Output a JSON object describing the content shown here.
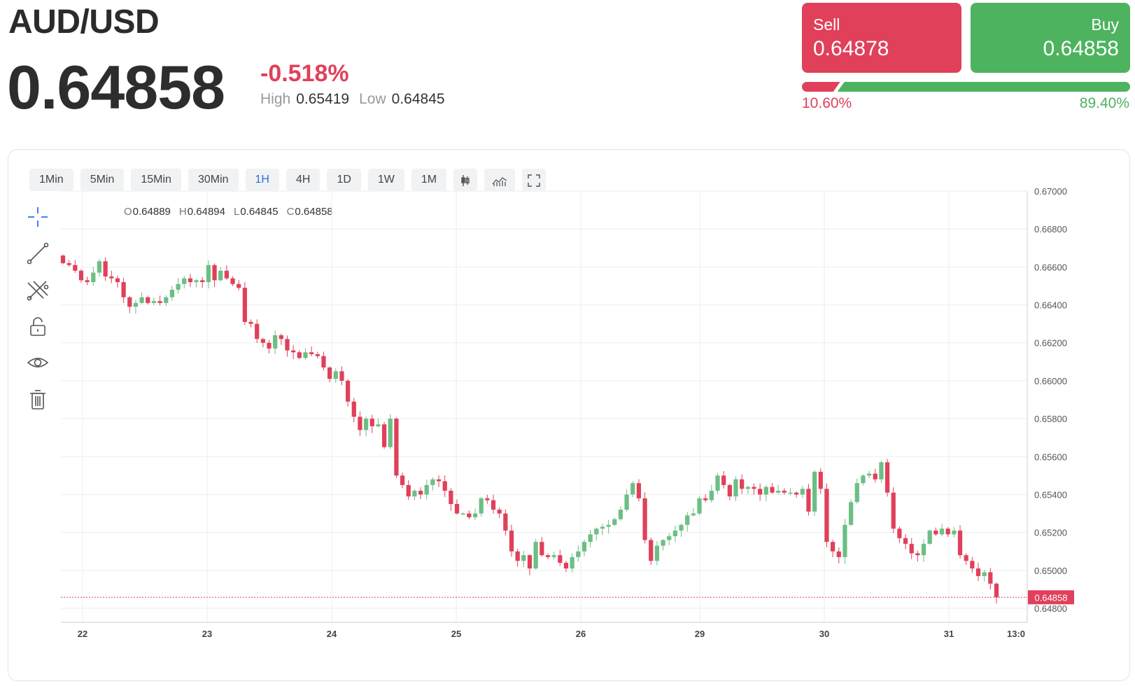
{
  "header": {
    "symbol": "AUD/USD",
    "price": "0.64858",
    "change": "-0.518%",
    "high_label": "High",
    "high": "0.65419",
    "low_label": "Low",
    "low": "0.64845"
  },
  "trade": {
    "sell_label": "Sell",
    "sell_price": "0.64878",
    "buy_label": "Buy",
    "buy_price": "0.64858",
    "sell_pct": "10.60%",
    "buy_pct": "89.40%",
    "sell_fraction": 0.106,
    "colors": {
      "sell": "#e0405a",
      "buy": "#4db35e"
    }
  },
  "toolbar": {
    "timeframes": [
      "1Min",
      "5Min",
      "15Min",
      "30Min",
      "1H",
      "4H",
      "1D",
      "1W",
      "1M"
    ],
    "active": "1H",
    "icons": [
      "candlestick-icon",
      "indicators-icon",
      "fullscreen-icon"
    ]
  },
  "drawing_tools": [
    "crosshair-icon",
    "trend-line-icon",
    "fib-tool-icon",
    "lock-icon",
    "eye-icon",
    "trash-icon"
  ],
  "ohlc": {
    "o_label": "O",
    "o": "0.64889",
    "h_label": "H",
    "h": "0.64894",
    "l_label": "L",
    "l": "0.64845",
    "c_label": "C",
    "c": "0.64858"
  },
  "chart_data": {
    "type": "candlestick",
    "x_ticks": [
      "22",
      "23",
      "24",
      "25",
      "26",
      "29",
      "30",
      "31",
      "13:0"
    ],
    "y_ticks": [
      "0.67000",
      "0.66800",
      "0.66600",
      "0.66400",
      "0.66200",
      "0.66000",
      "0.65800",
      "0.65600",
      "0.65400",
      "0.65200",
      "0.65000",
      "0.64800"
    ],
    "ylim": [
      0.64775,
      0.67
    ],
    "last_price": "0.64858",
    "grid": true,
    "close_path": [
      0.6662,
      0.6661,
      0.6658,
      0.6653,
      0.6652,
      0.6657,
      0.6663,
      0.6655,
      0.6654,
      0.6652,
      0.6644,
      0.6639,
      0.6641,
      0.6644,
      0.6641,
      0.6642,
      0.6641,
      0.6644,
      0.6648,
      0.6651,
      0.6654,
      0.6652,
      0.6653,
      0.6652,
      0.6661,
      0.6653,
      0.6658,
      0.6654,
      0.6651,
      0.6649,
      0.6631,
      0.663,
      0.6622,
      0.662,
      0.6617,
      0.6624,
      0.6622,
      0.6616,
      0.6615,
      0.6612,
      0.6615,
      0.6614,
      0.6613,
      0.6607,
      0.6601,
      0.6605,
      0.66,
      0.6589,
      0.6581,
      0.6574,
      0.658,
      0.6576,
      0.6577,
      0.6565,
      0.658,
      0.655,
      0.6545,
      0.6539,
      0.6542,
      0.654,
      0.6545,
      0.6548,
      0.6547,
      0.6542,
      0.6535,
      0.653,
      0.653,
      0.6528,
      0.653,
      0.6538,
      0.6537,
      0.6532,
      0.653,
      0.6521,
      0.651,
      0.6505,
      0.6508,
      0.6501,
      0.6515,
      0.6508,
      0.6507,
      0.6508,
      0.6504,
      0.6501,
      0.6507,
      0.651,
      0.6515,
      0.6519,
      0.6522,
      0.6523,
      0.6524,
      0.6527,
      0.6532,
      0.654,
      0.6546,
      0.6538,
      0.6516,
      0.6505,
      0.6513,
      0.6516,
      0.6518,
      0.6521,
      0.6524,
      0.6529,
      0.653,
      0.6538,
      0.6537,
      0.6542,
      0.655,
      0.6545,
      0.6539,
      0.6548,
      0.6543,
      0.6544,
      0.6543,
      0.654,
      0.6544,
      0.6541,
      0.6542,
      0.6541,
      0.6541,
      0.654,
      0.6543,
      0.6531,
      0.6552,
      0.6543,
      0.6515,
      0.651,
      0.6507,
      0.6524,
      0.6536,
      0.6546,
      0.655,
      0.6551,
      0.6548,
      0.6557,
      0.6541,
      0.6522,
      0.6517,
      0.6514,
      0.6509,
      0.6508,
      0.6514,
      0.6521,
      0.6519,
      0.6522,
      0.6519,
      0.6521,
      0.6508,
      0.6505,
      0.6501,
      0.6497,
      0.6499,
      0.6493,
      0.64858
    ]
  }
}
